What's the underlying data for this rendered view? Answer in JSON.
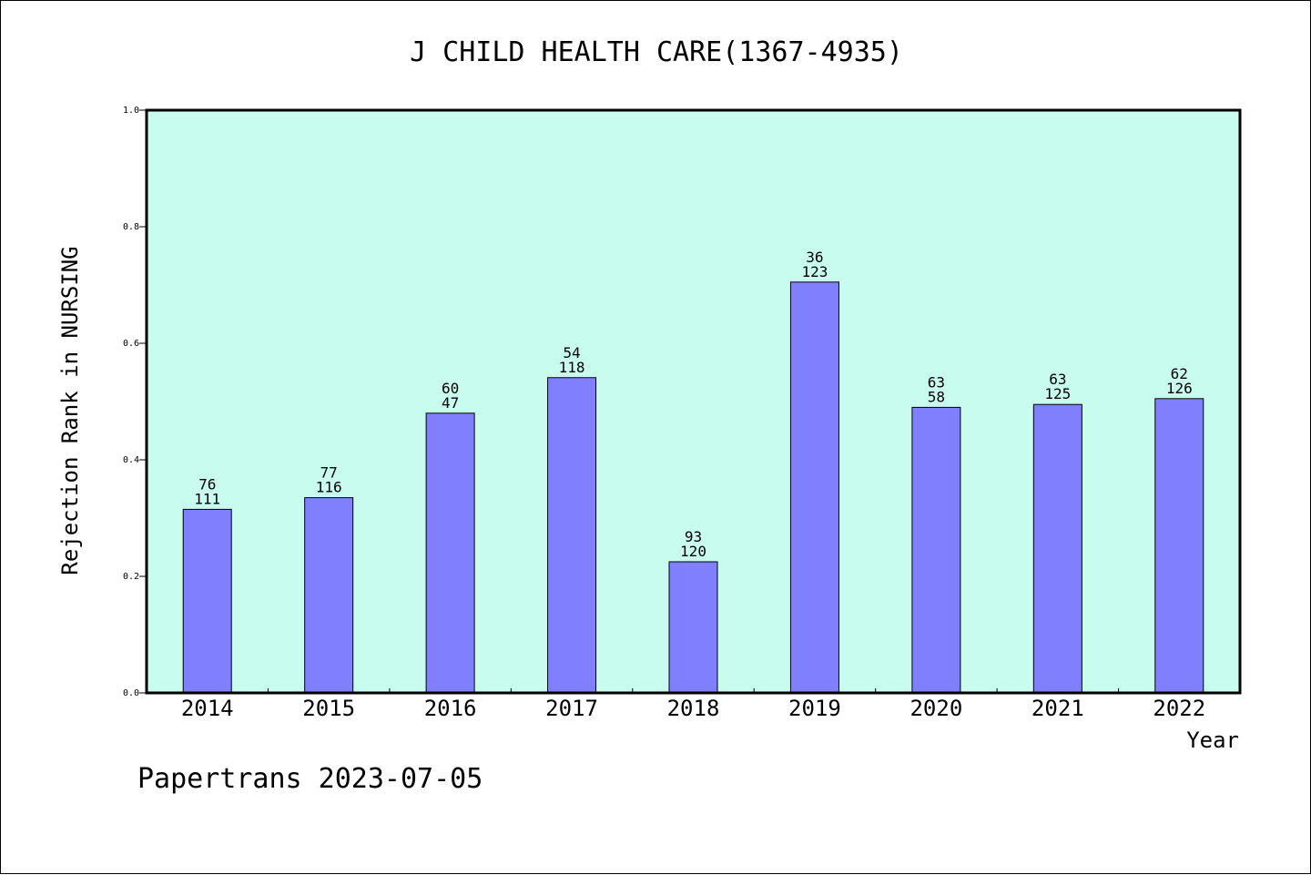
{
  "chart_data": {
    "type": "bar",
    "title": "J CHILD HEALTH CARE(1367-4935)",
    "xlabel": "Year",
    "ylabel": "Rejection Rank in NURSING",
    "ylim": [
      0,
      1.0
    ],
    "yticks": [
      "0.0",
      "0.2",
      "0.4",
      "0.6",
      "0.8",
      "1.0"
    ],
    "categories": [
      "2014",
      "2015",
      "2016",
      "2017",
      "2018",
      "2019",
      "2020",
      "2021",
      "2022"
    ],
    "values": [
      0.315,
      0.335,
      0.48,
      0.541,
      0.225,
      0.705,
      0.49,
      0.495,
      0.505
    ],
    "labels_top": [
      "76",
      "77",
      "60",
      "54",
      "93",
      "36",
      "63",
      "63",
      "62"
    ],
    "labels_bottom": [
      "111",
      "116",
      "47",
      "118",
      "120",
      "123",
      "58",
      "125",
      "126"
    ],
    "grid": false,
    "colors": {
      "plot_background": "#c8fcee",
      "bar_fill": "#8080ff",
      "bar_stroke": "#000000"
    }
  },
  "footer": "Papertrans 2023-07-05"
}
